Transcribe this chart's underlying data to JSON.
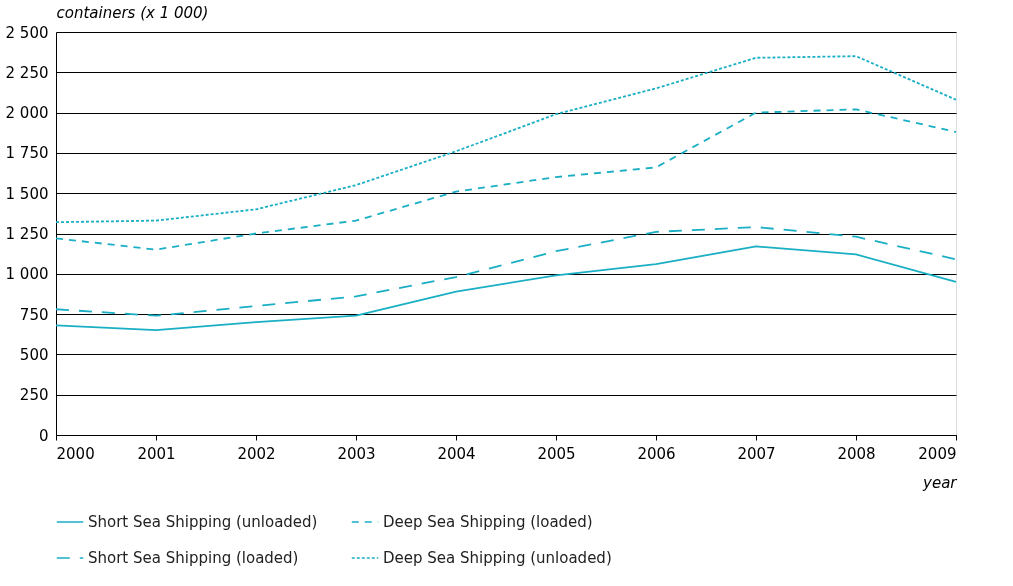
{
  "chart_data": {
    "type": "line",
    "ylabel": "containers (x 1 000)",
    "xlabel": "year",
    "x": [
      2000,
      2001,
      2002,
      2003,
      2004,
      2005,
      2006,
      2007,
      2008,
      2009
    ],
    "xlim": [
      2000,
      2009
    ],
    "xticks": [
      2000,
      2001,
      2002,
      2003,
      2004,
      2005,
      2006,
      2007,
      2008,
      2009
    ],
    "ylim": [
      0,
      2500
    ],
    "yticks": [
      0,
      250,
      500,
      750,
      {
        "value": 1000,
        "label": "1 000"
      },
      {
        "value": 1250,
        "label": "1 250"
      },
      {
        "value": 1500,
        "label": "1 500"
      },
      {
        "value": 1750,
        "label": "1 750"
      },
      {
        "value": 2000,
        "label": "2 000"
      },
      {
        "value": 2250,
        "label": "2 250"
      },
      {
        "value": 2500,
        "label": "2 500"
      }
    ],
    "grid": "y",
    "legend": "bottom",
    "series": [
      {
        "name": "Short Sea Shipping (unloaded)",
        "color": "#1aafc4",
        "line_style": "solid",
        "values": [
          680,
          650,
          700,
          740,
          890,
          990,
          1060,
          1170,
          1120,
          950
        ]
      },
      {
        "name": "Deep Sea Shipping (loaded)",
        "color": "#1aafc4",
        "line_style": "dashed",
        "values": [
          1220,
          1150,
          1250,
          1330,
          1510,
          1600,
          1660,
          2000,
          2020,
          1880
        ]
      },
      {
        "name": "Short Sea Shipping (loaded)",
        "color": "#1aafc4",
        "line_style": "dashed",
        "values": [
          780,
          740,
          800,
          860,
          980,
          1140,
          1260,
          1290,
          1230,
          1090
        ]
      },
      {
        "name": "Deep Sea Shipping (unloaded)",
        "color": "#1aafc4",
        "line_style": "dotted",
        "values": [
          1320,
          1330,
          1400,
          1550,
          1760,
          1990,
          2150,
          2340,
          2350,
          2080
        ]
      }
    ]
  }
}
